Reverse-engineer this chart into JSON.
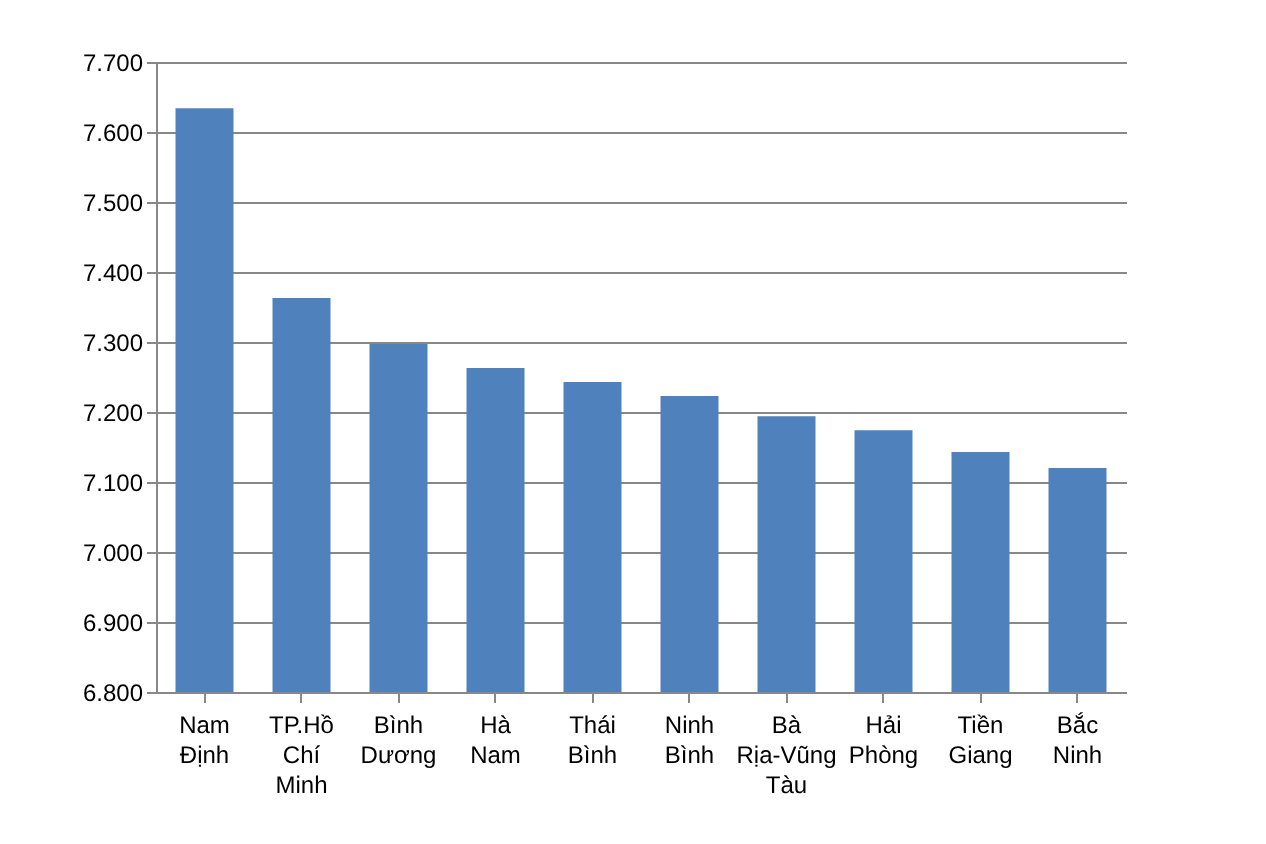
{
  "chart_data": {
    "type": "bar",
    "categories": [
      "Nam Định",
      "TP.Hồ Chí Minh",
      "Bình Dương",
      "Hà Nam",
      "Thái Bình",
      "Ninh Bình",
      "Bà Rịa-Vũng Tàu",
      "Hải Phòng",
      "Tiền Giang",
      "Bắc Ninh"
    ],
    "values": [
      7.634,
      7.363,
      7.297,
      7.263,
      7.243,
      7.223,
      7.194,
      7.174,
      7.143,
      7.12
    ],
    "color": "#4f81bd",
    "ylim": [
      6.8,
      7.7
    ],
    "yticks": [
      {
        "value": 6.8,
        "label": "6.800"
      },
      {
        "value": 6.9,
        "label": "6.900"
      },
      {
        "value": 7.0,
        "label": "7.000"
      },
      {
        "value": 7.1,
        "label": "7.100"
      },
      {
        "value": 7.2,
        "label": "7.200"
      },
      {
        "value": 7.3,
        "label": "7.300"
      },
      {
        "value": 7.4,
        "label": "7.400"
      },
      {
        "value": 7.5,
        "label": "7.500"
      },
      {
        "value": 7.6,
        "label": "7.600"
      },
      {
        "value": 7.7,
        "label": "7.700"
      }
    ],
    "grid": "y"
  }
}
